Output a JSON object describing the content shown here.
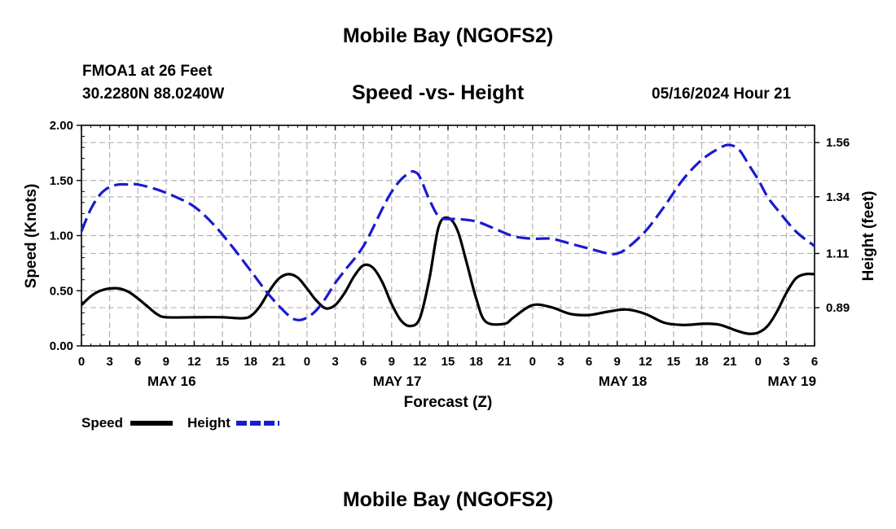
{
  "header": {
    "title": "Mobile Bay (NGOFS2)",
    "station": "FMOA1 at 26 Feet",
    "coords": "30.2280N  88.0240W",
    "subtitle": "Speed -vs- Height",
    "timestamp": "05/16/2024 Hour 21"
  },
  "footer": {
    "title": "Mobile Bay (NGOFS2)"
  },
  "colors": {
    "speed": "#000000",
    "height": "#1a1ad0",
    "grid": "#b4b4b4"
  },
  "chart_data": {
    "type": "line",
    "title": "Speed -vs- Height",
    "xlabel": "Forecast (Z)",
    "ylabel": "Speed (Knots)",
    "y2label": "Height (feet)",
    "xlim": [
      0,
      78
    ],
    "ylim": [
      0,
      2.0
    ],
    "y2lim": [
      0.735,
      1.63
    ],
    "grid": true,
    "legend_position": "bottom-left",
    "x_ticks": [
      0,
      3,
      6,
      9,
      12,
      15,
      18,
      21,
      24,
      27,
      30,
      33,
      36,
      39,
      42,
      45,
      48,
      51,
      54,
      57,
      60,
      63,
      66,
      69,
      72,
      75,
      78
    ],
    "x_tick_labels": [
      "0",
      "3",
      "6",
      "9",
      "12",
      "15",
      "18",
      "21",
      "0",
      "3",
      "6",
      "9",
      "12",
      "15",
      "18",
      "21",
      "0",
      "3",
      "6",
      "9",
      "12",
      "15",
      "18",
      "21",
      "0",
      "3",
      "6"
    ],
    "date_labels": [
      {
        "x": 9.6,
        "label": "MAY 16"
      },
      {
        "x": 33.6,
        "label": "MAY 17"
      },
      {
        "x": 57.6,
        "label": "MAY 18"
      },
      {
        "x": 75.6,
        "label": "MAY 19"
      }
    ],
    "y_ticks": [
      0,
      0.5,
      1.0,
      1.5,
      2.0
    ],
    "y_tick_labels": [
      "0.00",
      "0.50",
      "1.00",
      "1.50",
      "2.00"
    ],
    "y2_ticks": [
      0.89,
      1.11,
      1.34,
      1.56
    ],
    "y2_tick_labels": [
      "0.89",
      "1.11",
      "1.34",
      "1.56"
    ],
    "series": [
      {
        "name": "Speed",
        "axis": "left",
        "style": "solid",
        "x": [
          0,
          1,
          2,
          3,
          4,
          5,
          6,
          7,
          8,
          9,
          12,
          15,
          17,
          18,
          19,
          20,
          21,
          22,
          23,
          24,
          25,
          26,
          27,
          28,
          29,
          30,
          31,
          32,
          33,
          34,
          35,
          36,
          37,
          38,
          39,
          40,
          41,
          42,
          43,
          45,
          46,
          48,
          50,
          52,
          54,
          56,
          58,
          60,
          62,
          64,
          66,
          67,
          68,
          69,
          70,
          71,
          72,
          73,
          74,
          75,
          76,
          77,
          78
        ],
        "values": [
          0.37,
          0.45,
          0.5,
          0.52,
          0.52,
          0.49,
          0.43,
          0.36,
          0.29,
          0.26,
          0.26,
          0.26,
          0.25,
          0.27,
          0.36,
          0.5,
          0.61,
          0.65,
          0.62,
          0.52,
          0.41,
          0.34,
          0.37,
          0.48,
          0.63,
          0.73,
          0.71,
          0.58,
          0.38,
          0.23,
          0.18,
          0.25,
          0.6,
          1.08,
          1.16,
          1.05,
          0.75,
          0.43,
          0.22,
          0.2,
          0.26,
          0.37,
          0.35,
          0.29,
          0.28,
          0.31,
          0.33,
          0.29,
          0.21,
          0.19,
          0.2,
          0.2,
          0.19,
          0.16,
          0.13,
          0.11,
          0.12,
          0.18,
          0.31,
          0.48,
          0.61,
          0.65,
          0.65
        ]
      },
      {
        "name": "Height",
        "axis": "right",
        "style": "dashed",
        "x": [
          0,
          1,
          2,
          3,
          4,
          5,
          6,
          8,
          10,
          12,
          14,
          16,
          18,
          20,
          22,
          23,
          24,
          25,
          26,
          27,
          28,
          30,
          32,
          33,
          34,
          35,
          35.5,
          36,
          37,
          38,
          39,
          40,
          42,
          44,
          46,
          48,
          50,
          52,
          54,
          56,
          57,
          58,
          60,
          62,
          64,
          66,
          68,
          69,
          70,
          71,
          72,
          73,
          74,
          76,
          78
        ],
        "values": [
          1.2,
          1.29,
          1.35,
          1.38,
          1.39,
          1.39,
          1.39,
          1.37,
          1.34,
          1.3,
          1.23,
          1.14,
          1.04,
          0.94,
          0.86,
          0.84,
          0.85,
          0.88,
          0.93,
          0.99,
          1.04,
          1.14,
          1.29,
          1.36,
          1.41,
          1.44,
          1.44,
          1.42,
          1.33,
          1.26,
          1.25,
          1.25,
          1.24,
          1.21,
          1.18,
          1.17,
          1.17,
          1.15,
          1.13,
          1.11,
          1.11,
          1.13,
          1.2,
          1.3,
          1.41,
          1.49,
          1.54,
          1.55,
          1.53,
          1.47,
          1.41,
          1.34,
          1.29,
          1.2,
          1.14
        ]
      }
    ]
  }
}
